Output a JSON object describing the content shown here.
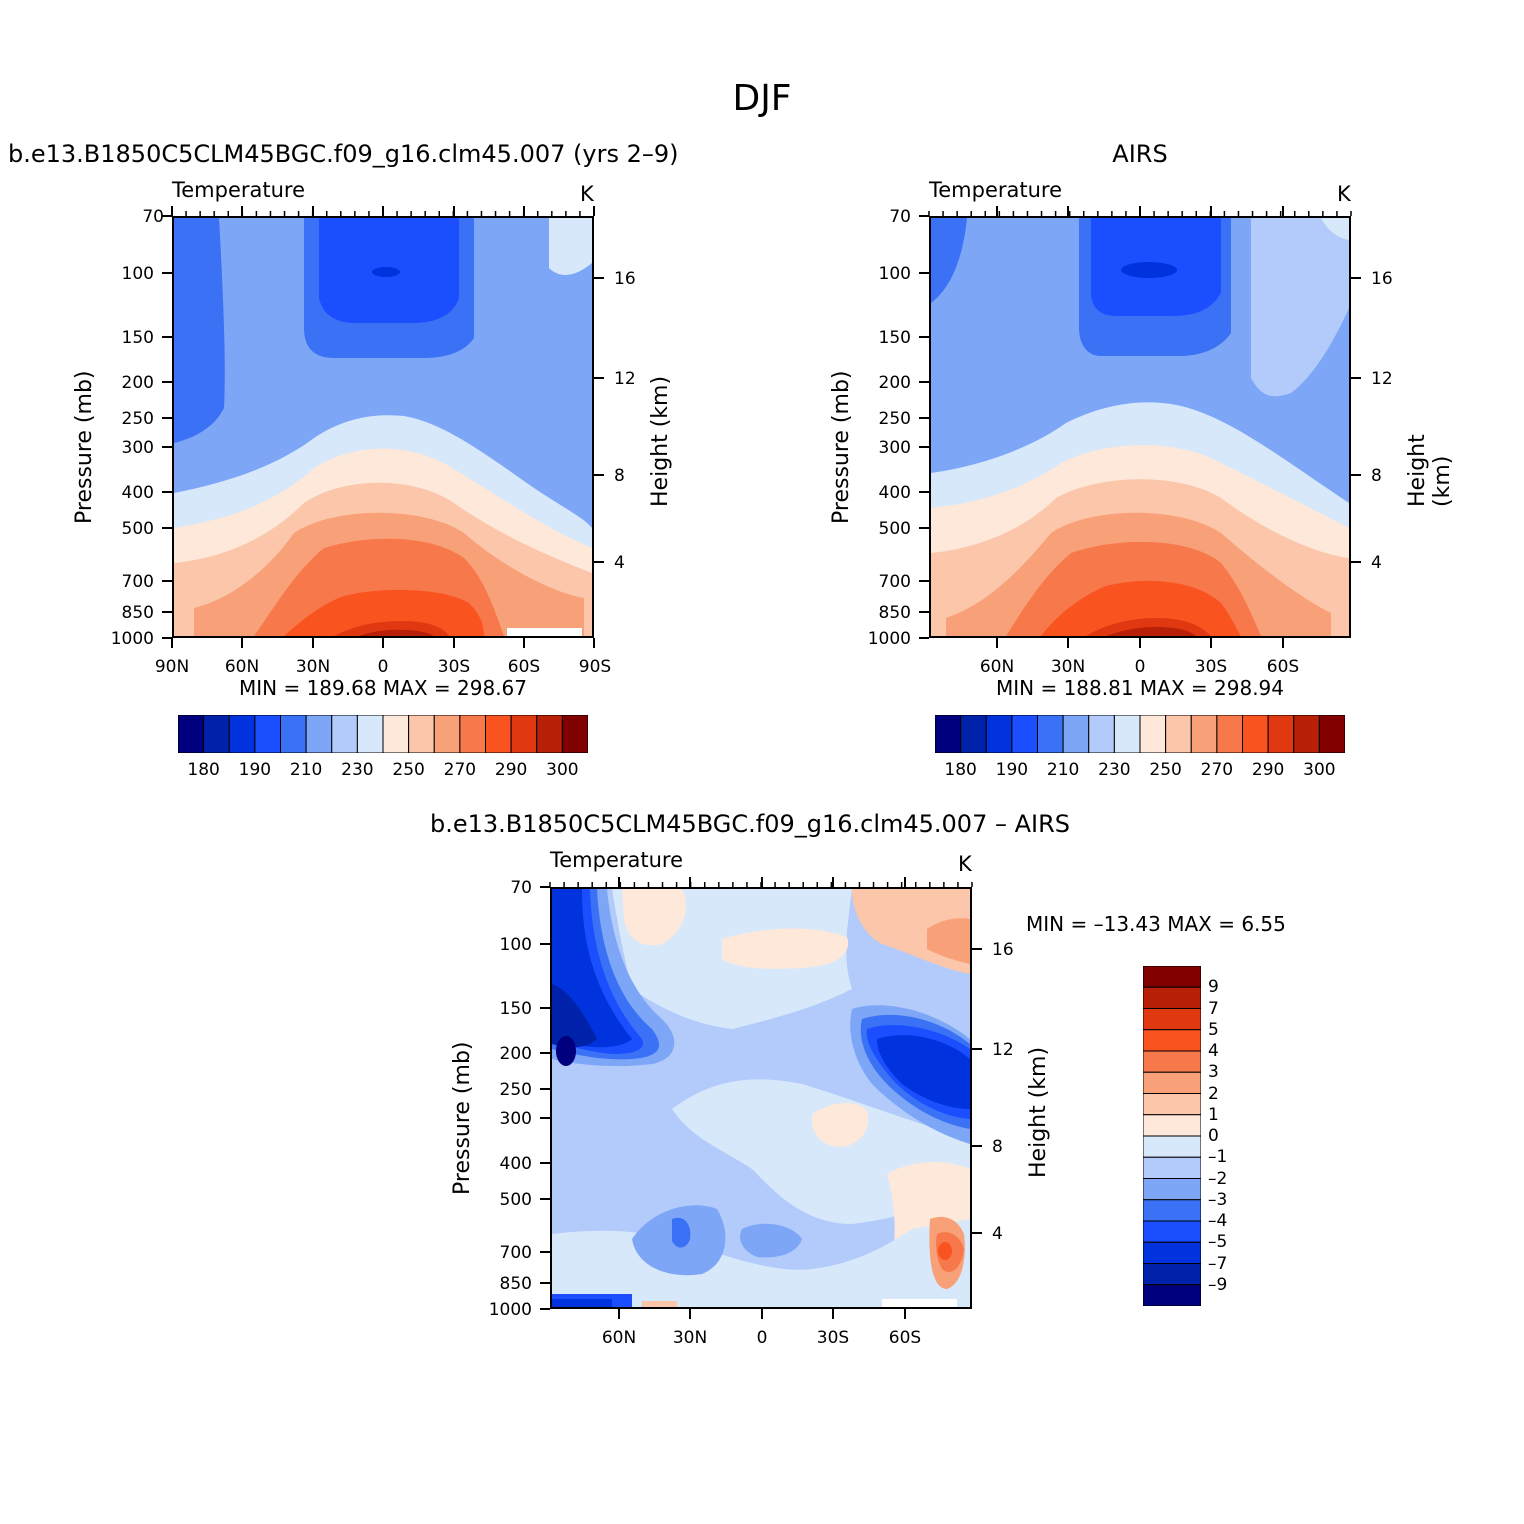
{
  "figure": {
    "title": "DJF",
    "panels": [
      {
        "title": "b.e13.B1850C5CLM45BGC.f09_g16.clm45.007 (yrs 2–9)",
        "left_label": "Temperature",
        "units": "K",
        "ylabel": "Pressure (mb)",
        "ylabel_right": "Height (km)",
        "stats": "MIN = 189.68   MAX = 298.67",
        "x_ticks": [
          "90N",
          "60N",
          "30N",
          "0",
          "30S",
          "60S",
          "90S"
        ],
        "y_ticks": [
          "70",
          "100",
          "150",
          "200",
          "250",
          "300",
          "400",
          "500",
          "700",
          "850",
          "1000"
        ],
        "y_right_ticks": [
          "16",
          "12",
          "8",
          "4"
        ]
      },
      {
        "title": "AIRS",
        "left_label": "Temperature",
        "units": "K",
        "ylabel": "Pressure (mb)",
        "ylabel_right": "Height (km)",
        "stats": "MIN = 188.81   MAX = 298.94",
        "x_ticks": [
          "60N",
          "30N",
          "0",
          "30S",
          "60S"
        ],
        "y_ticks": [
          "70",
          "100",
          "150",
          "200",
          "250",
          "300",
          "400",
          "500",
          "700",
          "850",
          "1000"
        ],
        "y_right_ticks": [
          "16",
          "12",
          "8",
          "4"
        ]
      },
      {
        "title": "b.e13.B1850C5CLM45BGC.f09_g16.clm45.007 – AIRS",
        "left_label": "Temperature",
        "units": "K",
        "ylabel": "Pressure (mb)",
        "ylabel_right": "Height (km)",
        "stats": "MIN = –13.43   MAX =     6.55",
        "x_ticks": [
          "60N",
          "30N",
          "0",
          "30S",
          "60S"
        ],
        "y_ticks": [
          "70",
          "100",
          "150",
          "200",
          "250",
          "300",
          "400",
          "500",
          "700",
          "850",
          "1000"
        ],
        "y_right_ticks": [
          "16",
          "12",
          "8",
          "4"
        ]
      }
    ],
    "colorbar_abs": {
      "labels": [
        "180",
        "190",
        "210",
        "230",
        "250",
        "270",
        "290",
        "300"
      ],
      "colors": [
        "#00007f",
        "#0022aa",
        "#0033dd",
        "#1a4eff",
        "#3b72f5",
        "#7ea6f7",
        "#b2cbfb",
        "#d8e8fb",
        "#fde8da",
        "#fcc6aa",
        "#f8a179",
        "#f7784b",
        "#f95420",
        "#e03810",
        "#b82008",
        "#800000"
      ]
    },
    "colorbar_diff": {
      "labels": [
        "9",
        "7",
        "5",
        "4",
        "3",
        "2",
        "1",
        "0",
        "–1",
        "–2",
        "–3",
        "–4",
        "–5",
        "–7",
        "–9"
      ],
      "colors": [
        "#800000",
        "#b82008",
        "#e03810",
        "#f95420",
        "#f7784b",
        "#f8a179",
        "#fcc6aa",
        "#fde8da",
        "#d8e8fb",
        "#b2cbfb",
        "#7ea6f7",
        "#3b72f5",
        "#1a4eff",
        "#0033dd",
        "#0022aa",
        "#00007f"
      ]
    }
  },
  "chart_data": [
    {
      "type": "heatmap",
      "title": "b.e13.B1850C5CLM45BGC.f09_g16.clm45.007 (yrs 2–9)",
      "variable": "Temperature",
      "units": "K",
      "xlabel": "",
      "ylabel": "Pressure (mb)",
      "x_ticks": [
        "90N",
        "60N",
        "30N",
        "0",
        "30S",
        "60S",
        "90S"
      ],
      "y_ticks": [
        70,
        100,
        150,
        200,
        250,
        300,
        400,
        500,
        700,
        850,
        1000
      ],
      "y_right_label": "Height (km)",
      "y_right_ticks": [
        16,
        12,
        8,
        4
      ],
      "min": 189.68,
      "max": 298.67,
      "contour_levels": [
        180,
        185,
        190,
        200,
        210,
        220,
        230,
        240,
        250,
        260,
        270,
        280,
        290,
        295,
        300
      ]
    },
    {
      "type": "heatmap",
      "title": "AIRS",
      "variable": "Temperature",
      "units": "K",
      "xlabel": "",
      "ylabel": "Pressure (mb)",
      "x_ticks": [
        "60N",
        "30N",
        "0",
        "30S",
        "60S"
      ],
      "y_ticks": [
        70,
        100,
        150,
        200,
        250,
        300,
        400,
        500,
        700,
        850,
        1000
      ],
      "y_right_label": "Height (km)",
      "y_right_ticks": [
        16,
        12,
        8,
        4
      ],
      "min": 188.81,
      "max": 298.94,
      "contour_levels": [
        180,
        185,
        190,
        200,
        210,
        220,
        230,
        240,
        250,
        260,
        270,
        280,
        290,
        295,
        300
      ]
    },
    {
      "type": "heatmap",
      "title": "b.e13.B1850C5CLM45BGC.f09_g16.clm45.007 – AIRS",
      "variable": "Temperature",
      "units": "K",
      "xlabel": "",
      "ylabel": "Pressure (mb)",
      "x_ticks": [
        "60N",
        "30N",
        "0",
        "30S",
        "60S"
      ],
      "y_ticks": [
        70,
        100,
        150,
        200,
        250,
        300,
        400,
        500,
        700,
        850,
        1000
      ],
      "y_right_label": "Height (km)",
      "y_right_ticks": [
        16,
        12,
        8,
        4
      ],
      "min": -13.43,
      "max": 6.55,
      "contour_levels": [
        -9,
        -7,
        -5,
        -4,
        -3,
        -2,
        -1,
        0,
        1,
        2,
        3,
        4,
        5,
        7,
        9
      ]
    }
  ]
}
